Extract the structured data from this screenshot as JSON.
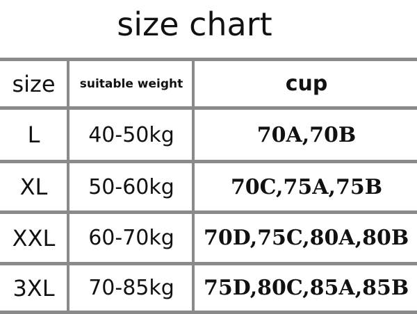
{
  "title": "size chart",
  "headers": [
    "size",
    "suitable weight",
    "cup"
  ],
  "rows": [
    [
      "L",
      "40-50kg",
      "70A,70B"
    ],
    [
      "XL",
      "50-60kg",
      "70C,75A,75B"
    ],
    [
      "XXL",
      "60-70kg",
      "70D,75C,80A,80B"
    ],
    [
      "3XL",
      "70-85kg",
      "75D,80C,85A,85B"
    ]
  ],
  "colors": {
    "grid": "#8a8a8a",
    "text": "#111111"
  }
}
